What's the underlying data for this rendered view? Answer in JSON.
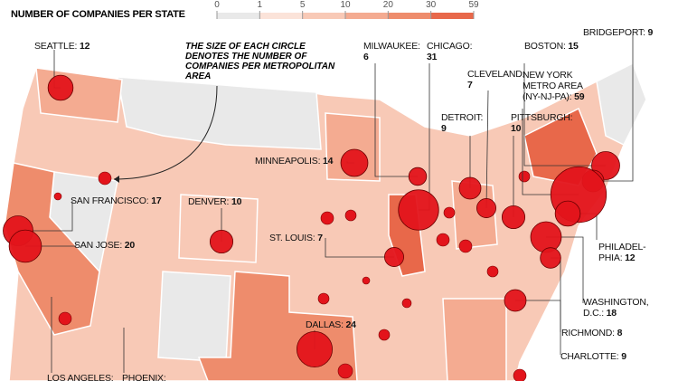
{
  "legend": {
    "title": "NUMBER OF COMPANIES PER STATE",
    "ticks": [
      0,
      1,
      5,
      10,
      20,
      30,
      59
    ],
    "colors": [
      "#e9e9e9",
      "#fbe3d9",
      "#f8c9b6",
      "#f4ab91",
      "#ee8c6c",
      "#e8684a"
    ]
  },
  "annotation": "THE SIZE OF EACH CIRCLE DENOTES THE NUMBER OF COMPANIES PER METROPOLITAN AREA",
  "circle_color": "#e3141b",
  "cities": [
    {
      "name": "SEATTLE:",
      "value": 12
    },
    {
      "name": "SAN FRANCISCO:",
      "value": 17
    },
    {
      "name": "SAN JOSE:",
      "value": 20
    },
    {
      "name": "DENVER:",
      "value": 10
    },
    {
      "name": "MINNEAPOLIS:",
      "value": 14
    },
    {
      "name": "ST. LOUIS:",
      "value": 7
    },
    {
      "name": "DALLAS:",
      "value": 24
    },
    {
      "name": "MILWAUKEE:",
      "value": 6
    },
    {
      "name": "CHICAGO:",
      "value": 31
    },
    {
      "name": "CLEVELAND:",
      "value": 7
    },
    {
      "name": "DETROIT:",
      "value": 9
    },
    {
      "name": "PITTSBURGH:",
      "value": 10
    },
    {
      "name": "BOSTON:",
      "value": 15
    },
    {
      "name": "BRIDGEPORT:",
      "value": 9
    },
    {
      "name": "NEW YORK METRO AREA (NY-NJ-PA):",
      "value": 59
    },
    {
      "name": "PHILADEL-PHIA:",
      "value": 12
    },
    {
      "name": "WASHINGTON, D.C.:",
      "value": 18
    },
    {
      "name": "RICHMOND:",
      "value": 8
    },
    {
      "name": "CHARLOTTE:",
      "value": 9
    },
    {
      "name": "LOS ANGELES:"
    },
    {
      "name": "PHOENIX:"
    }
  ]
}
